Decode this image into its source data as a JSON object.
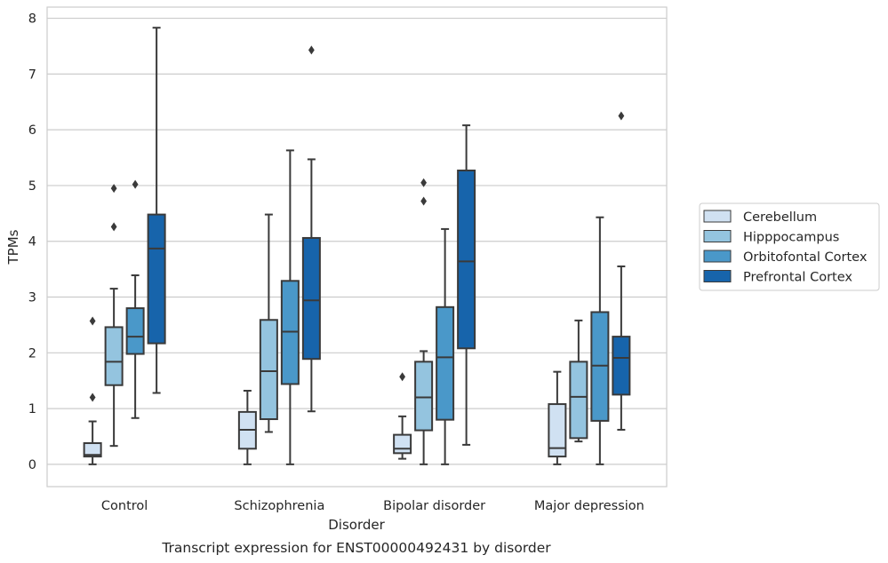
{
  "chart_data": {
    "type": "box",
    "caption": "Transcript expression for ENST00000492431 by disorder",
    "xlabel": "Disorder",
    "ylabel": "TPMs",
    "ylim": [
      -0.4,
      8.2
    ],
    "yticks": [
      0,
      1,
      2,
      3,
      4,
      5,
      6,
      7,
      8
    ],
    "grid": true,
    "legend": "right-center",
    "categories": [
      "Control",
      "Schizophrenia",
      "Bipolar disorder",
      "Major depression"
    ],
    "series": [
      {
        "name": "Cerebellum",
        "color": "#d0e1f2",
        "boxes": [
          {
            "whislo": 0.0,
            "q1": 0.14,
            "med": 0.17,
            "q3": 0.38,
            "whishi": 0.77,
            "fliers": [
              1.2,
              2.57
            ]
          },
          {
            "whislo": 0.0,
            "q1": 0.28,
            "med": 0.62,
            "q3": 0.94,
            "whishi": 1.32,
            "fliers": []
          },
          {
            "whislo": 0.1,
            "q1": 0.2,
            "med": 0.28,
            "q3": 0.53,
            "whishi": 0.86,
            "fliers": [
              1.57
            ]
          },
          {
            "whislo": 0.0,
            "q1": 0.14,
            "med": 0.29,
            "q3": 1.08,
            "whishi": 1.66,
            "fliers": []
          }
        ]
      },
      {
        "name": "Hipppocampus",
        "color": "#94c4df",
        "boxes": [
          {
            "whislo": 0.33,
            "q1": 1.42,
            "med": 1.84,
            "q3": 2.46,
            "whishi": 3.15,
            "fliers": [
              4.26,
              4.95
            ]
          },
          {
            "whislo": 0.58,
            "q1": 0.81,
            "med": 1.67,
            "q3": 2.59,
            "whishi": 4.48,
            "fliers": []
          },
          {
            "whislo": 0.0,
            "q1": 0.61,
            "med": 1.2,
            "q3": 1.84,
            "whishi": 2.03,
            "fliers": [
              4.72,
              5.05
            ]
          },
          {
            "whislo": 0.41,
            "q1": 0.47,
            "med": 1.21,
            "q3": 1.84,
            "whishi": 2.58,
            "fliers": []
          }
        ]
      },
      {
        "name": "Orbitofontal Cortex",
        "color": "#4a98c9",
        "boxes": [
          {
            "whislo": 0.83,
            "q1": 1.98,
            "med": 2.29,
            "q3": 2.8,
            "whishi": 3.39,
            "fliers": [
              5.02
            ]
          },
          {
            "whislo": 0.0,
            "q1": 1.44,
            "med": 2.38,
            "q3": 3.29,
            "whishi": 5.63,
            "fliers": []
          },
          {
            "whislo": 0.0,
            "q1": 0.8,
            "med": 1.92,
            "q3": 2.82,
            "whishi": 4.22,
            "fliers": []
          },
          {
            "whislo": 0.0,
            "q1": 0.78,
            "med": 1.77,
            "q3": 2.73,
            "whishi": 4.43,
            "fliers": []
          }
        ]
      },
      {
        "name": "Prefrontal Cortex",
        "color": "#1764ab",
        "boxes": [
          {
            "whislo": 1.28,
            "q1": 2.17,
            "med": 3.87,
            "q3": 4.48,
            "whishi": 7.83,
            "fliers": []
          },
          {
            "whislo": 0.95,
            "q1": 1.89,
            "med": 2.94,
            "q3": 4.06,
            "whishi": 5.47,
            "fliers": [
              7.43
            ]
          },
          {
            "whislo": 0.35,
            "q1": 2.08,
            "med": 3.64,
            "q3": 5.27,
            "whishi": 6.08,
            "fliers": []
          },
          {
            "whislo": 0.62,
            "q1": 1.25,
            "med": 1.91,
            "q3": 2.29,
            "whishi": 3.55,
            "fliers": [
              6.25
            ]
          }
        ]
      }
    ]
  }
}
